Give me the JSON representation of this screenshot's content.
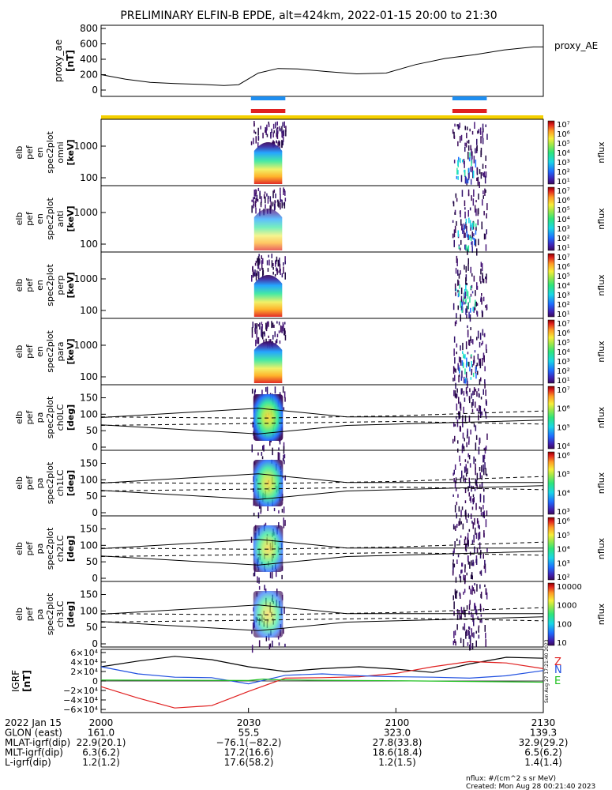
{
  "title": "PRELIMINARY ELFIN-B EPDE, alt=424km, 2022-01-15 20:00 to 21:30",
  "colors": {
    "bar_blue": "#1e8ef0",
    "bar_red": "#e02020",
    "bar_yellow": "#f5d000",
    "bz_black": "#000000",
    "bn_red": "#e02020",
    "bn_blue": "#2050e0",
    "be_green": "#20c020"
  },
  "ae_panel": {
    "ylabel": "proxy_ae",
    "yunit": "[nT]",
    "legend": "proxy_AE",
    "yticks": [
      "800",
      "600",
      "400",
      "200",
      "0"
    ]
  },
  "energy_panels": [
    {
      "ylabel": [
        "elb",
        "pef",
        "en",
        "spec2plot",
        "omni",
        "[keV]"
      ],
      "yticks": [
        "1000",
        "100"
      ],
      "cbar_unit": "nflux",
      "cbar_ticks": [
        "10⁷",
        "10⁶",
        "10⁵",
        "10⁴",
        "10³",
        "10²",
        "10¹"
      ]
    },
    {
      "ylabel": [
        "elb",
        "pef",
        "en",
        "spec2plot",
        "anti",
        "[keV]"
      ],
      "yticks": [
        "1000",
        "100"
      ],
      "cbar_unit": "nflux",
      "cbar_ticks": [
        "10⁷",
        "10⁶",
        "10⁵",
        "10⁴",
        "10³",
        "10²",
        "10¹"
      ]
    },
    {
      "ylabel": [
        "elb",
        "pef",
        "en",
        "spec2plot",
        "perp",
        "[keV]"
      ],
      "yticks": [
        "1000",
        "100"
      ],
      "cbar_unit": "nflux",
      "cbar_ticks": [
        "10⁷",
        "10⁶",
        "10⁵",
        "10⁴",
        "10³",
        "10²",
        "10¹"
      ]
    },
    {
      "ylabel": [
        "elb",
        "pef",
        "en",
        "spec2plot",
        "para",
        "[keV]"
      ],
      "yticks": [
        "1000",
        "100"
      ],
      "cbar_unit": "nflux",
      "cbar_ticks": [
        "10⁷",
        "10⁶",
        "10⁵",
        "10⁴",
        "10³",
        "10²",
        "10¹"
      ]
    }
  ],
  "pa_panels": [
    {
      "ylabel": [
        "elb",
        "pef",
        "pa",
        "spec2plot",
        "ch0LC",
        "[deg]"
      ],
      "yticks": [
        "150",
        "100",
        "50",
        "0"
      ],
      "cbar_unit": "nflux",
      "cbar_ticks": [
        "10⁷",
        "10⁶",
        "10⁵",
        "10⁴"
      ]
    },
    {
      "ylabel": [
        "elb",
        "pef",
        "pa",
        "spec2plot",
        "ch1LC",
        "[deg]"
      ],
      "yticks": [
        "150",
        "100",
        "50",
        "0"
      ],
      "cbar_unit": "nflux",
      "cbar_ticks": [
        "10⁶",
        "10⁵",
        "10⁴",
        "10³"
      ]
    },
    {
      "ylabel": [
        "elb",
        "pef",
        "pa",
        "spec2plot",
        "ch2LC",
        "[deg]"
      ],
      "yticks": [
        "150",
        "100",
        "50",
        "0"
      ],
      "cbar_unit": "nflux",
      "cbar_ticks": [
        "10⁶",
        "10⁵",
        "10⁴",
        "10³",
        "10²"
      ]
    },
    {
      "ylabel": [
        "elb",
        "pef",
        "pa",
        "spec2plot",
        "ch3LC",
        "[deg]"
      ],
      "yticks": [
        "150",
        "100",
        "50",
        "0"
      ],
      "cbar_unit": "nflux",
      "cbar_ticks": [
        "10000",
        "1000",
        "100",
        "10"
      ]
    }
  ],
  "igrf_panel": {
    "ylabel": "IGRF",
    "yunit": "[nT]",
    "yticks": [
      "6×10⁴",
      "4×10⁴",
      "2×10⁴",
      "0",
      "−2×10⁴",
      "−4×10⁴",
      "−6×10⁴"
    ],
    "legend": [
      "Z",
      "N",
      "E"
    ],
    "side_note": "Sun Aug 27 17:21:40 2023"
  },
  "ephemeris": {
    "rows": [
      {
        "label": "2022 Jan 15",
        "values": [
          "2000",
          "2030",
          "2100",
          "2130"
        ]
      },
      {
        "label": "GLON (east)",
        "values": [
          "161.0",
          "55.5",
          "323.0",
          "139.3"
        ]
      },
      {
        "label": "MLAT-igrf(dip)",
        "values": [
          "22.9(20.1)",
          "−76.1(−82.2)",
          "27.8(33.8)",
          "32.9(29.2)"
        ]
      },
      {
        "label": "MLT-igrf(dip)",
        "values": [
          "6.3(6.2)",
          "17.2(16.6)",
          "18.6(18.4)",
          "6.5(6.2)"
        ]
      },
      {
        "label": "L-igrf(dip)",
        "values": [
          "1.2(1.2)",
          "17.6(58.2)",
          "1.2(1.5)",
          "1.4(1.4)"
        ]
      }
    ]
  },
  "footer": {
    "units": "nflux: #/(cm^2 s sr MeV)",
    "created": "Created: Mon Aug 28 00:21:40 2023"
  },
  "chart_data": {
    "type": "line",
    "title": "PRELIMINARY ELFIN-B EPDE, alt=424km, 2022-01-15 20:00 to 21:30",
    "x_range_minutes": [
      0,
      90
    ],
    "x_tick_labels": [
      "2000",
      "2030",
      "2100",
      "2130"
    ],
    "science_zones": [
      {
        "start_min": 30.5,
        "end_min": 37.5
      },
      {
        "start_min": 71.5,
        "end_min": 78.5
      }
    ],
    "proxy_ae": {
      "ylim": [
        0,
        800
      ],
      "x_min": [
        0,
        5,
        10,
        15,
        20,
        25,
        28,
        32,
        36,
        40,
        46,
        52,
        58,
        64,
        70,
        76,
        82,
        88,
        90
      ],
      "y": [
        200,
        140,
        100,
        85,
        75,
        60,
        70,
        220,
        280,
        275,
        240,
        210,
        220,
        330,
        410,
        460,
        520,
        560,
        560
      ]
    },
    "igrf": {
      "ylim": [
        -60000,
        60000
      ],
      "x_min": [
        0,
        7.5,
        15,
        22.5,
        30,
        37.5,
        45,
        52.5,
        60,
        67.5,
        75,
        82.5,
        90
      ],
      "series": [
        {
          "name": "Z",
          "values": [
            30000,
            42000,
            52000,
            45000,
            30000,
            20000,
            26000,
            30000,
            25000,
            18000,
            36000,
            50000,
            48000
          ]
        },
        {
          "name": "N",
          "values": [
            -12000,
            -36000,
            -57000,
            -52000,
            -22000,
            6000,
            7000,
            9000,
            16000,
            30000,
            41000,
            38000,
            26000
          ]
        },
        {
          "name": "E",
          "values": [
            30000,
            15000,
            8000,
            7000,
            -6000,
            12000,
            15000,
            11000,
            9000,
            8000,
            6000,
            11000,
            22000
          ]
        }
      ]
    }
  }
}
